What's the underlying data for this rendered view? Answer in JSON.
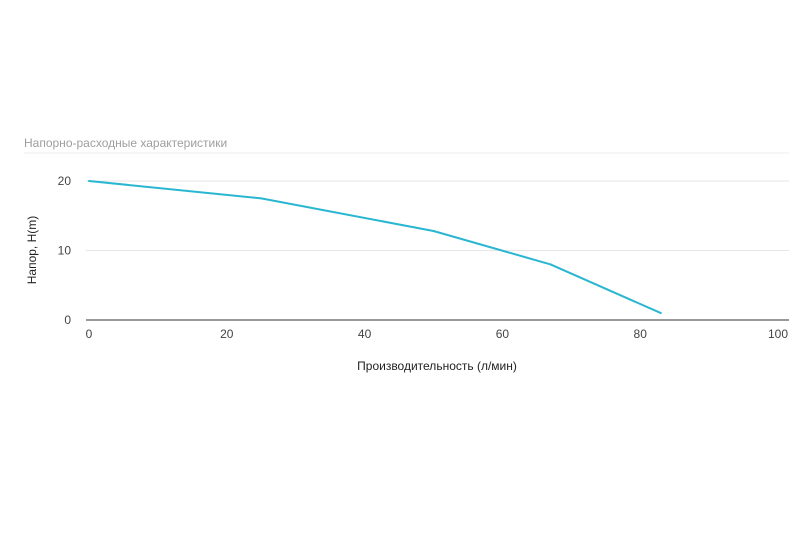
{
  "chart_data": {
    "type": "line",
    "title": "Напорно-расходные характеристики",
    "xlabel": "Производительность (л/мин)",
    "ylabel": "Напор, H(m)",
    "xlim": [
      0,
      100
    ],
    "ylim": [
      0,
      20
    ],
    "x_ticks": [
      "0",
      "20",
      "40",
      "60",
      "80",
      "100"
    ],
    "y_ticks": [
      "0",
      "10",
      "20"
    ],
    "grid": true,
    "legend": "none",
    "series": [
      {
        "color": "#29b6d1",
        "points": [
          {
            "x": 0,
            "y": 20
          },
          {
            "x": 25,
            "y": 17.5
          },
          {
            "x": 50,
            "y": 12.8
          },
          {
            "x": 67,
            "y": 8
          },
          {
            "x": 83,
            "y": 1
          }
        ]
      }
    ]
  },
  "colors": {
    "line": "#29b6d1",
    "grid": "#e6e6e6",
    "axis": "#333333",
    "title": "#9e9e9e"
  }
}
